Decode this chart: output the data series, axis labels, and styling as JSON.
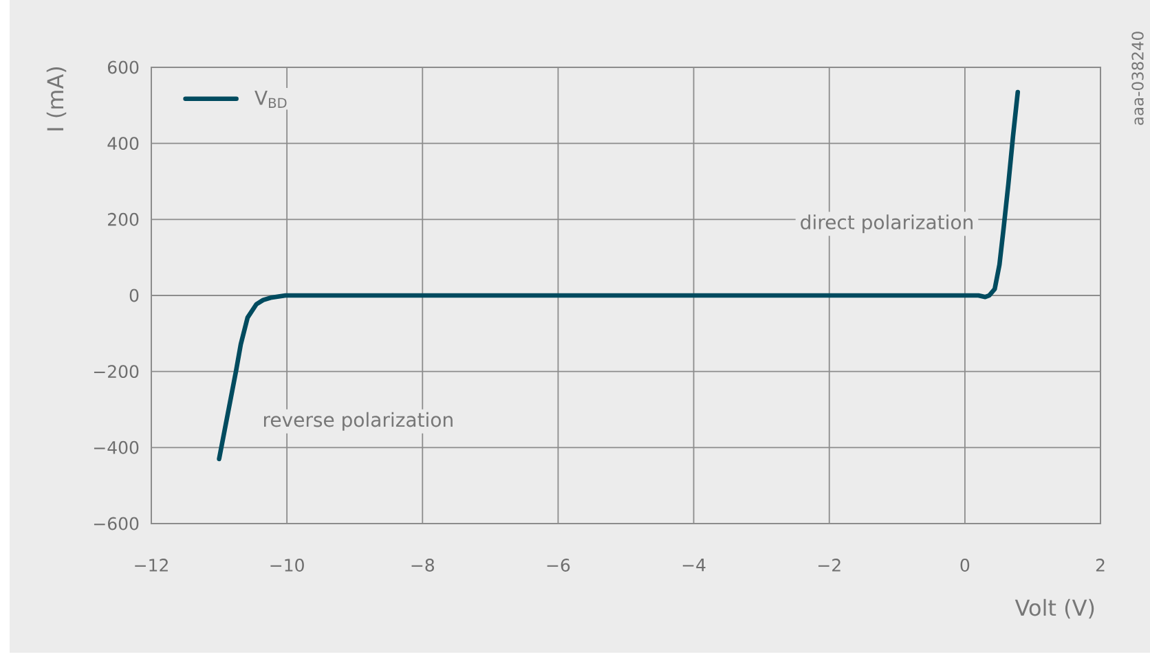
{
  "chart_data": {
    "type": "line",
    "xlabel": "Volt (V)",
    "ylabel": "I (mA)",
    "x": [
      -11.0,
      -10.75,
      -10.68,
      -10.58,
      -10.45,
      -10.35,
      -10.24,
      -10.02,
      0.2,
      0.3,
      0.36,
      0.44,
      0.51,
      0.57,
      0.64,
      0.71,
      0.78
    ],
    "series": [
      {
        "name": "V$_{BD}$",
        "color": "#004b5f",
        "values": [
          -430,
          -198,
          -128,
          -58,
          -23,
          -12,
          -6,
          0,
          0,
          -4,
          0,
          17,
          81,
          175,
          291,
          419,
          535
        ]
      }
    ],
    "xlim": [
      -12,
      2
    ],
    "ylim": [
      -600,
      600
    ],
    "xticks": [
      {
        "value": -12,
        "label": "−12"
      },
      {
        "value": -10,
        "label": "−10"
      },
      {
        "value": -8,
        "label": "−8"
      },
      {
        "value": -6,
        "label": "−6"
      },
      {
        "value": -4,
        "label": "−4"
      },
      {
        "value": -2,
        "label": "−2"
      },
      0,
      2
    ],
    "yticks": [
      {
        "value": -600,
        "label": "−600"
      },
      {
        "value": -400,
        "label": "−400"
      },
      {
        "value": -200,
        "label": "−200"
      },
      0,
      200,
      400,
      600
    ],
    "grid": true,
    "legend": "top left",
    "marker": "none",
    "line_style": "solid",
    "annotations": [
      "reverse polarization",
      "direct polarization",
      "aaa-038240"
    ]
  }
}
